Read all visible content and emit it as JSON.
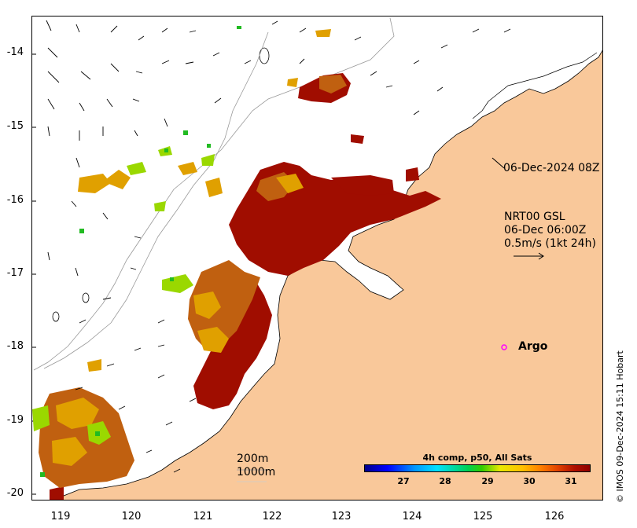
{
  "map": {
    "y_ticks": [
      "-14",
      "-15",
      "-16",
      "-17",
      "-18",
      "-19",
      "-20"
    ],
    "x_ticks": [
      "119",
      "120",
      "121",
      "122",
      "123",
      "124",
      "125",
      "126"
    ],
    "timestamp_label": "06-Dec-2024 08Z",
    "current_legend": {
      "line1": "NRT00 GSL",
      "line2": "06-Dec 06:00Z",
      "line3": "0.5m/s (1kt 24h)"
    },
    "argo_label": "Argo",
    "depth_labels": [
      "200m",
      "1000m"
    ],
    "credit": "© IMOS 09-Dec-2024 15:11 Hobart"
  },
  "colorbar": {
    "title": "4h comp, p50, All Sats",
    "ticks": [
      "27",
      "28",
      "29",
      "30",
      "31"
    ],
    "min": 26.3,
    "max": 31.6
  },
  "colors": {
    "land": "#f9c89a",
    "ocean": "#ffffff",
    "argo": "#ff00ff",
    "sst_hot": "#a00d00"
  }
}
